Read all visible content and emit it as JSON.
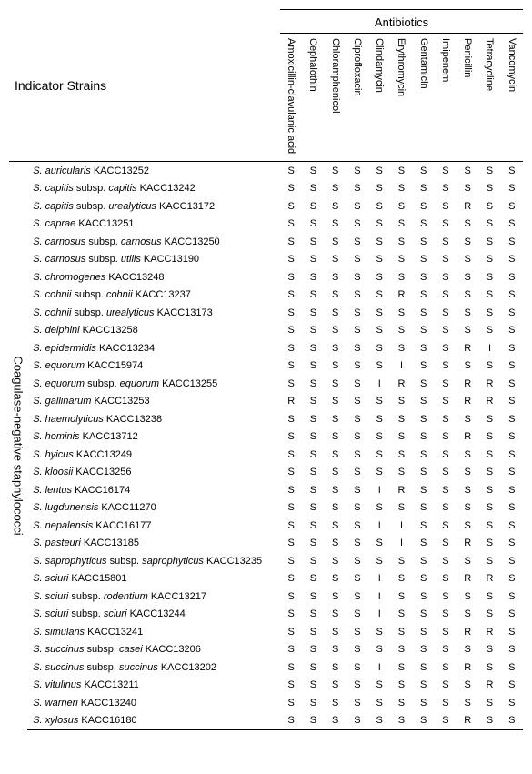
{
  "header": {
    "indicator_label": "Indicator  Strains",
    "antibiotics_title": "Antibiotics",
    "antibiotics": [
      "Amoxicillin-clavulanic acid",
      "Cephalothin",
      "Chloramphenicol",
      "Ciprofloxacin",
      "Clindamycin",
      "Erythromycin",
      "Gentamicin",
      "Imipenem",
      "Penicillin",
      "Tetracycline",
      "Vancomycin"
    ]
  },
  "group_label": "Coagulase-negative   staphylococci",
  "style": {
    "background_color": "#ffffff",
    "text_color": "#000000",
    "rule_color": "#000000",
    "header_font_size_pt": 10,
    "body_font_size_pt": 8
  },
  "rows": [
    {
      "name_parts": [
        {
          "t": "S. auricularis",
          "i": true
        },
        {
          "t": " KACC13252",
          "i": false
        }
      ],
      "vals": [
        "S",
        "S",
        "S",
        "S",
        "S",
        "S",
        "S",
        "S",
        "S",
        "S",
        "S"
      ]
    },
    {
      "name_parts": [
        {
          "t": "S. capitis",
          "i": true
        },
        {
          "t": " subsp. ",
          "i": false
        },
        {
          "t": "capitis",
          "i": true
        },
        {
          "t": " KACC13242",
          "i": false
        }
      ],
      "vals": [
        "S",
        "S",
        "S",
        "S",
        "S",
        "S",
        "S",
        "S",
        "S",
        "S",
        "S"
      ]
    },
    {
      "name_parts": [
        {
          "t": "S. capitis",
          "i": true
        },
        {
          "t": " subsp. ",
          "i": false
        },
        {
          "t": "urealyticus",
          "i": true
        },
        {
          "t": " KACC13172",
          "i": false
        }
      ],
      "vals": [
        "S",
        "S",
        "S",
        "S",
        "S",
        "S",
        "S",
        "S",
        "R",
        "S",
        "S"
      ]
    },
    {
      "name_parts": [
        {
          "t": "S. caprae",
          "i": true
        },
        {
          "t": " KACC13251",
          "i": false
        }
      ],
      "vals": [
        "S",
        "S",
        "S",
        "S",
        "S",
        "S",
        "S",
        "S",
        "S",
        "S",
        "S"
      ]
    },
    {
      "name_parts": [
        {
          "t": "S. carnosus",
          "i": true
        },
        {
          "t": " subsp. ",
          "i": false
        },
        {
          "t": "carnosus",
          "i": true
        },
        {
          "t": " KACC13250",
          "i": false
        }
      ],
      "vals": [
        "S",
        "S",
        "S",
        "S",
        "S",
        "S",
        "S",
        "S",
        "S",
        "S",
        "S"
      ]
    },
    {
      "name_parts": [
        {
          "t": "S. carnosus",
          "i": true
        },
        {
          "t": " subsp. ",
          "i": false
        },
        {
          "t": "utilis",
          "i": true
        },
        {
          "t": " KACC13190",
          "i": false
        }
      ],
      "vals": [
        "S",
        "S",
        "S",
        "S",
        "S",
        "S",
        "S",
        "S",
        "S",
        "S",
        "S"
      ]
    },
    {
      "name_parts": [
        {
          "t": "S. chromogenes",
          "i": true
        },
        {
          "t": " KACC13248",
          "i": false
        }
      ],
      "vals": [
        "S",
        "S",
        "S",
        "S",
        "S",
        "S",
        "S",
        "S",
        "S",
        "S",
        "S"
      ]
    },
    {
      "name_parts": [
        {
          "t": "S. cohnii",
          "i": true
        },
        {
          "t": " subsp. ",
          "i": false
        },
        {
          "t": "cohnii",
          "i": true
        },
        {
          "t": " KACC13237",
          "i": false
        }
      ],
      "vals": [
        "S",
        "S",
        "S",
        "S",
        "S",
        "R",
        "S",
        "S",
        "S",
        "S",
        "S"
      ]
    },
    {
      "name_parts": [
        {
          "t": "S. cohnii",
          "i": true
        },
        {
          "t": " subsp. ",
          "i": false
        },
        {
          "t": "urealyticus",
          "i": true
        },
        {
          "t": " KACC13173",
          "i": false
        }
      ],
      "vals": [
        "S",
        "S",
        "S",
        "S",
        "S",
        "S",
        "S",
        "S",
        "S",
        "S",
        "S"
      ]
    },
    {
      "name_parts": [
        {
          "t": "S. delphini",
          "i": true
        },
        {
          "t": " KACC13258",
          "i": false
        }
      ],
      "vals": [
        "S",
        "S",
        "S",
        "S",
        "S",
        "S",
        "S",
        "S",
        "S",
        "S",
        "S"
      ]
    },
    {
      "name_parts": [
        {
          "t": "S. epidermidis",
          "i": true
        },
        {
          "t": " KACC13234",
          "i": false
        }
      ],
      "vals": [
        "S",
        "S",
        "S",
        "S",
        "S",
        "S",
        "S",
        "S",
        "R",
        "I",
        "S"
      ]
    },
    {
      "name_parts": [
        {
          "t": "S. equorum",
          "i": true
        },
        {
          "t": " KACC15974",
          "i": false
        }
      ],
      "vals": [
        "S",
        "S",
        "S",
        "S",
        "S",
        "I",
        "S",
        "S",
        "S",
        "S",
        "S"
      ]
    },
    {
      "name_parts": [
        {
          "t": "S. equorum",
          "i": true
        },
        {
          "t": " subsp. ",
          "i": false
        },
        {
          "t": "equorum",
          "i": true
        },
        {
          "t": " KACC13255",
          "i": false
        }
      ],
      "vals": [
        "S",
        "S",
        "S",
        "S",
        "I",
        "R",
        "S",
        "S",
        "R",
        "R",
        "S"
      ]
    },
    {
      "name_parts": [
        {
          "t": "S. gallinarum",
          "i": true
        },
        {
          "t": " KACC13253",
          "i": false
        }
      ],
      "vals": [
        "R",
        "S",
        "S",
        "S",
        "S",
        "S",
        "S",
        "S",
        "R",
        "R",
        "S"
      ]
    },
    {
      "name_parts": [
        {
          "t": "S. haemolyticus",
          "i": true
        },
        {
          "t": " KACC13238",
          "i": false
        }
      ],
      "vals": [
        "S",
        "S",
        "S",
        "S",
        "S",
        "S",
        "S",
        "S",
        "S",
        "S",
        "S"
      ]
    },
    {
      "name_parts": [
        {
          "t": "S. hominis",
          "i": true
        },
        {
          "t": " KACC13712",
          "i": false
        }
      ],
      "vals": [
        "S",
        "S",
        "S",
        "S",
        "S",
        "S",
        "S",
        "S",
        "R",
        "S",
        "S"
      ]
    },
    {
      "name_parts": [
        {
          "t": "S. hyicus",
          "i": true
        },
        {
          "t": " KACC13249",
          "i": false
        }
      ],
      "vals": [
        "S",
        "S",
        "S",
        "S",
        "S",
        "S",
        "S",
        "S",
        "S",
        "S",
        "S"
      ]
    },
    {
      "name_parts": [
        {
          "t": "S. kloosii",
          "i": true
        },
        {
          "t": " KACC13256",
          "i": false
        }
      ],
      "vals": [
        "S",
        "S",
        "S",
        "S",
        "S",
        "S",
        "S",
        "S",
        "S",
        "S",
        "S"
      ]
    },
    {
      "name_parts": [
        {
          "t": "S. lentus",
          "i": true
        },
        {
          "t": " KACC16174",
          "i": false
        }
      ],
      "vals": [
        "S",
        "S",
        "S",
        "S",
        "I",
        "R",
        "S",
        "S",
        "S",
        "S",
        "S"
      ]
    },
    {
      "name_parts": [
        {
          "t": "S. lugdunensis",
          "i": true
        },
        {
          "t": " KACC11270",
          "i": false
        }
      ],
      "vals": [
        "S",
        "S",
        "S",
        "S",
        "S",
        "S",
        "S",
        "S",
        "S",
        "S",
        "S"
      ]
    },
    {
      "name_parts": [
        {
          "t": "S. nepalensis",
          "i": true
        },
        {
          "t": " KACC16177",
          "i": false
        }
      ],
      "vals": [
        "S",
        "S",
        "S",
        "S",
        "I",
        "I",
        "S",
        "S",
        "S",
        "S",
        "S"
      ]
    },
    {
      "name_parts": [
        {
          "t": "S. pasteuri",
          "i": true
        },
        {
          "t": " KACC13185",
          "i": false
        }
      ],
      "vals": [
        "S",
        "S",
        "S",
        "S",
        "S",
        "I",
        "S",
        "S",
        "R",
        "S",
        "S"
      ]
    },
    {
      "name_parts": [
        {
          "t": "S. saprophyticus",
          "i": true
        },
        {
          "t": " subsp. ",
          "i": false
        },
        {
          "t": "saprophyticus",
          "i": true
        },
        {
          "t": " KACC13235",
          "i": false
        }
      ],
      "vals": [
        "S",
        "S",
        "S",
        "S",
        "S",
        "S",
        "S",
        "S",
        "S",
        "S",
        "S"
      ]
    },
    {
      "name_parts": [
        {
          "t": "S. sciuri",
          "i": true
        },
        {
          "t": " KACC15801",
          "i": false
        }
      ],
      "vals": [
        "S",
        "S",
        "S",
        "S",
        "I",
        "S",
        "S",
        "S",
        "R",
        "R",
        "S"
      ]
    },
    {
      "name_parts": [
        {
          "t": "S. sciuri",
          "i": true
        },
        {
          "t": " subsp. ",
          "i": false
        },
        {
          "t": "rodentium",
          "i": true
        },
        {
          "t": " KACC13217",
          "i": false
        }
      ],
      "vals": [
        "S",
        "S",
        "S",
        "S",
        "I",
        "S",
        "S",
        "S",
        "S",
        "S",
        "S"
      ]
    },
    {
      "name_parts": [
        {
          "t": "S. sciuri",
          "i": true
        },
        {
          "t": " subsp. ",
          "i": false
        },
        {
          "t": "sciuri",
          "i": true
        },
        {
          "t": " KACC13244",
          "i": false
        }
      ],
      "vals": [
        "S",
        "S",
        "S",
        "S",
        "I",
        "S",
        "S",
        "S",
        "S",
        "S",
        "S"
      ]
    },
    {
      "name_parts": [
        {
          "t": "S. simulans",
          "i": true
        },
        {
          "t": " KACC13241",
          "i": false
        }
      ],
      "vals": [
        "S",
        "S",
        "S",
        "S",
        "S",
        "S",
        "S",
        "S",
        "R",
        "R",
        "S"
      ]
    },
    {
      "name_parts": [
        {
          "t": "S. succinus",
          "i": true
        },
        {
          "t": " subsp. ",
          "i": false
        },
        {
          "t": "casei",
          "i": true
        },
        {
          "t": " KACC13206",
          "i": false
        }
      ],
      "vals": [
        "S",
        "S",
        "S",
        "S",
        "S",
        "S",
        "S",
        "S",
        "S",
        "S",
        "S"
      ]
    },
    {
      "name_parts": [
        {
          "t": "S. succinus",
          "i": true
        },
        {
          "t": " subsp. ",
          "i": false
        },
        {
          "t": "succinus",
          "i": true
        },
        {
          "t": " KACC13202",
          "i": false
        }
      ],
      "vals": [
        "S",
        "S",
        "S",
        "S",
        "I",
        "S",
        "S",
        "S",
        "R",
        "S",
        "S"
      ]
    },
    {
      "name_parts": [
        {
          "t": "S. vitulinus",
          "i": true
        },
        {
          "t": " KACC13211",
          "i": false
        }
      ],
      "vals": [
        "S",
        "S",
        "S",
        "S",
        "S",
        "S",
        "S",
        "S",
        "S",
        "R",
        "S"
      ]
    },
    {
      "name_parts": [
        {
          "t": "S. warneri",
          "i": true
        },
        {
          "t": " KACC13240",
          "i": false
        }
      ],
      "vals": [
        "S",
        "S",
        "S",
        "S",
        "S",
        "S",
        "S",
        "S",
        "S",
        "S",
        "S"
      ]
    },
    {
      "name_parts": [
        {
          "t": "S. xylosus",
          "i": true
        },
        {
          "t": " KACC16180",
          "i": false
        }
      ],
      "vals": [
        "S",
        "S",
        "S",
        "S",
        "S",
        "S",
        "S",
        "S",
        "R",
        "S",
        "S"
      ]
    }
  ]
}
